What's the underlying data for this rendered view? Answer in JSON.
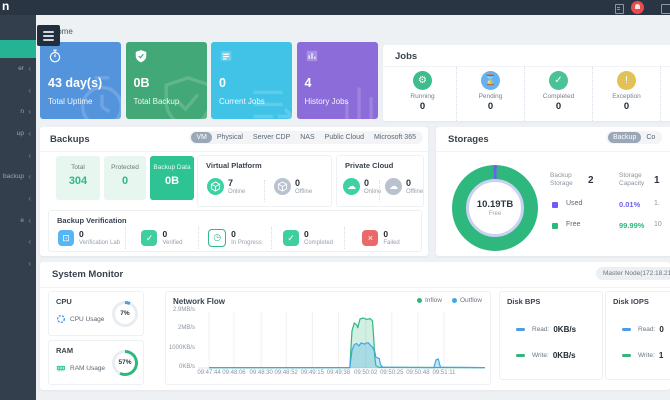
{
  "topbar": {
    "logo_fragment": "n"
  },
  "colors": {
    "accent_green": "#2eb888",
    "sidebar_active": "#25b394",
    "topbar_bg": "#2a3544",
    "online": "#3ed1a2",
    "offline": "#b9c2cf",
    "alert_red": "#e84c4c"
  },
  "sidebar": {
    "items": [
      {
        "label": "",
        "active": true
      },
      {
        "label": "er"
      },
      {
        "label": ""
      },
      {
        "label": "n"
      },
      {
        "label": "up"
      },
      {
        "label": ""
      },
      {
        "label": "backup"
      },
      {
        "label": ""
      },
      {
        "label": "e"
      },
      {
        "label": ""
      },
      {
        "label": ""
      }
    ]
  },
  "breadcrumb": {
    "label": "Home"
  },
  "summary_cards": [
    {
      "value": "43 day(s)",
      "label": "Total Uptime",
      "color": "#5494dd",
      "icon": "stopwatch-icon"
    },
    {
      "value": "0B",
      "label": "Total Backup",
      "color": "#42a877",
      "icon": "shield-check-icon"
    },
    {
      "value": "0",
      "label": "Current Jobs",
      "color": "#40c3e6",
      "icon": "job-list-icon"
    },
    {
      "value": "4",
      "label": "History Jobs",
      "color": "#8b6cd9",
      "icon": "history-chart-icon"
    }
  ],
  "jobs": {
    "title": "Jobs",
    "items": [
      {
        "label": "Running",
        "value": "0",
        "icon": "gear-icon",
        "color": "#3dbd8d"
      },
      {
        "label": "Pending",
        "value": "0",
        "icon": "hourglass-icon",
        "color": "#66b1f1"
      },
      {
        "label": "Completed",
        "value": "0",
        "icon": "check-icon",
        "color": "#49c295"
      },
      {
        "label": "Exception",
        "value": "0",
        "icon": "exclamation-icon",
        "color": "#e2c155"
      }
    ]
  },
  "backups": {
    "title": "Backups",
    "tabs": [
      {
        "label": "VM",
        "active": true
      },
      {
        "label": "Physical"
      },
      {
        "label": "Server CDP"
      },
      {
        "label": "NAS"
      },
      {
        "label": "Public Cloud"
      },
      {
        "label": "Microsoft 365"
      }
    ],
    "stats": [
      {
        "label": "Total",
        "value": "304"
      },
      {
        "label": "Protected",
        "value": "0"
      },
      {
        "label": "Backup Data",
        "value": "0B"
      }
    ],
    "virtual_platform": {
      "title": "Virtual Platform",
      "online_value": "7",
      "online_label": "Online",
      "offline_value": "0",
      "offline_label": "Offline"
    },
    "private_cloud": {
      "title": "Private Cloud",
      "online_value": "0",
      "online_label": "Online",
      "offline_value": "0",
      "offline_label": "Offline"
    },
    "verification": {
      "title": "Backup Verification",
      "items": [
        {
          "label": "Verification Lab",
          "value": "0",
          "icon": "monitor-icon",
          "color": "#56b5f5",
          "style": "solid"
        },
        {
          "label": "Verified",
          "value": "0",
          "icon": "check-icon",
          "color": "#3fcf9f",
          "style": "solid"
        },
        {
          "label": "In Progress",
          "value": "0",
          "icon": "clock-icon",
          "color": "#2eb88d",
          "style": "outline"
        },
        {
          "label": "Completed",
          "value": "0",
          "icon": "clipboard-check-icon",
          "color": "#3fcf9f",
          "style": "solid"
        },
        {
          "label": "Failed",
          "value": "0",
          "icon": "cross-icon",
          "color": "#e96a6a",
          "style": "solid"
        }
      ]
    }
  },
  "storages": {
    "title": "Storages",
    "tabs": [
      {
        "label": "Backup",
        "active": true
      },
      {
        "label": "Co"
      }
    ],
    "donut_center_value": "10.19TB",
    "donut_center_label": "Free",
    "summary": {
      "col1_label": "Backup Storage",
      "col1_value": "2",
      "col2_label": "Storage Capacity",
      "col2_value": "1"
    },
    "legend_rows": [
      {
        "label": "Used",
        "percent": "0.01%",
        "extra": "1.",
        "color": "#6f5ef0"
      },
      {
        "label": "Free",
        "percent": "99.99%",
        "extra": "10",
        "color": "#2eb87e"
      }
    ]
  },
  "system_monitor": {
    "title": "System Monitor",
    "node_badge": "Master Node(172.18.21.",
    "cpu": {
      "title": "CPU",
      "usage_label": "CPU Usage",
      "value": "7%",
      "percent": 7,
      "color": "#4a9de8"
    },
    "ram": {
      "title": "RAM",
      "usage_label": "RAM Usage",
      "value": "57%",
      "percent": 57,
      "color": "#2eb87e"
    },
    "network": {
      "title": "Network Flow"
    },
    "disk_bps": {
      "title": "Disk BPS",
      "read_label": "Read:",
      "read_value": "0KB/s",
      "write_label": "Write:",
      "write_value": "0KB/s",
      "read_color": "#4a9de8",
      "write_color": "#2eb87e"
    },
    "disk_iops": {
      "title": "Disk IOPS",
      "read_label": "Read:",
      "read_value": "0",
      "write_label": "Write:",
      "write_value": "1",
      "read_color": "#4a9de8",
      "write_color": "#2eb87e"
    }
  },
  "chart_data": [
    {
      "id": "network-flow",
      "type": "area",
      "title": "Network Flow",
      "legend_position": "top-right",
      "x_ticks": [
        "09:47:44",
        "09:48:06",
        "09:48:30",
        "09:48:52",
        "09:49:15",
        "09:49:38",
        "09:50:02",
        "09:50:25",
        "09:50:48",
        "09:51:11"
      ],
      "x_tick_seconds": [
        0,
        22,
        46,
        68,
        91,
        114,
        138,
        161,
        184,
        207
      ],
      "y_ticks": [
        "0KB/s",
        "1000KB/s",
        "2MB/s",
        "2.9MB/s"
      ],
      "y_tick_values": [
        0,
        0.977,
        2,
        2.9
      ],
      "ylim": [
        0,
        2.9
      ],
      "y_unit": "MB/s",
      "series": [
        {
          "name": "Inflow",
          "color": "#2eb87e",
          "fill": "rgba(46,184,126,0.22)",
          "points": [
            [
              0,
              0.02
            ],
            [
              124,
              0.02
            ],
            [
              126,
              1.9
            ],
            [
              128,
              2.3
            ],
            [
              130,
              2.2
            ],
            [
              131,
              2.05
            ],
            [
              133,
              2.5
            ],
            [
              136,
              2.55
            ],
            [
              139,
              2.48
            ],
            [
              142,
              2.52
            ],
            [
              144,
              2.4
            ],
            [
              145,
              1.6
            ],
            [
              146,
              0.6
            ],
            [
              147,
              0.12
            ],
            [
              150,
              0.03
            ],
            [
              243,
              0.02
            ]
          ]
        },
        {
          "name": "Outflow",
          "color": "#3da8e8",
          "fill": "rgba(77,171,232,0.30)",
          "points": [
            [
              0,
              0.02
            ],
            [
              124,
              0.02
            ],
            [
              126,
              0.9
            ],
            [
              128,
              1.2
            ],
            [
              130,
              1.25
            ],
            [
              132,
              1.12
            ],
            [
              134,
              1.28
            ],
            [
              137,
              1.22
            ],
            [
              140,
              1.3
            ],
            [
              142,
              1.18
            ],
            [
              144,
              1.05
            ],
            [
              146,
              0.85
            ],
            [
              147,
              0.55
            ],
            [
              150,
              0.48
            ],
            [
              151,
              0.18
            ],
            [
              153,
              0.04
            ],
            [
              198,
              0.02
            ],
            [
              200,
              0.42
            ],
            [
              202,
              0.46
            ],
            [
              203,
              0.2
            ],
            [
              204,
              0.04
            ],
            [
              243,
              0.02
            ]
          ]
        }
      ]
    },
    {
      "id": "storage-usage-donut",
      "type": "pie",
      "center_value": "10.19TB",
      "center_label": "Free",
      "slices": [
        {
          "label": "Used",
          "value": 0.01,
          "color": "#6f5ef0"
        },
        {
          "label": "Free",
          "value": 99.99,
          "color": "#2eb87e"
        }
      ]
    },
    {
      "id": "cpu-gauge",
      "type": "gauge",
      "label": "CPU Usage",
      "percent": 7,
      "color": "#4a9de8",
      "track": "#e8edf2"
    },
    {
      "id": "ram-gauge",
      "type": "gauge",
      "label": "RAM Usage",
      "percent": 57,
      "color": "#2eb87e",
      "track": "#e8edf2"
    }
  ]
}
